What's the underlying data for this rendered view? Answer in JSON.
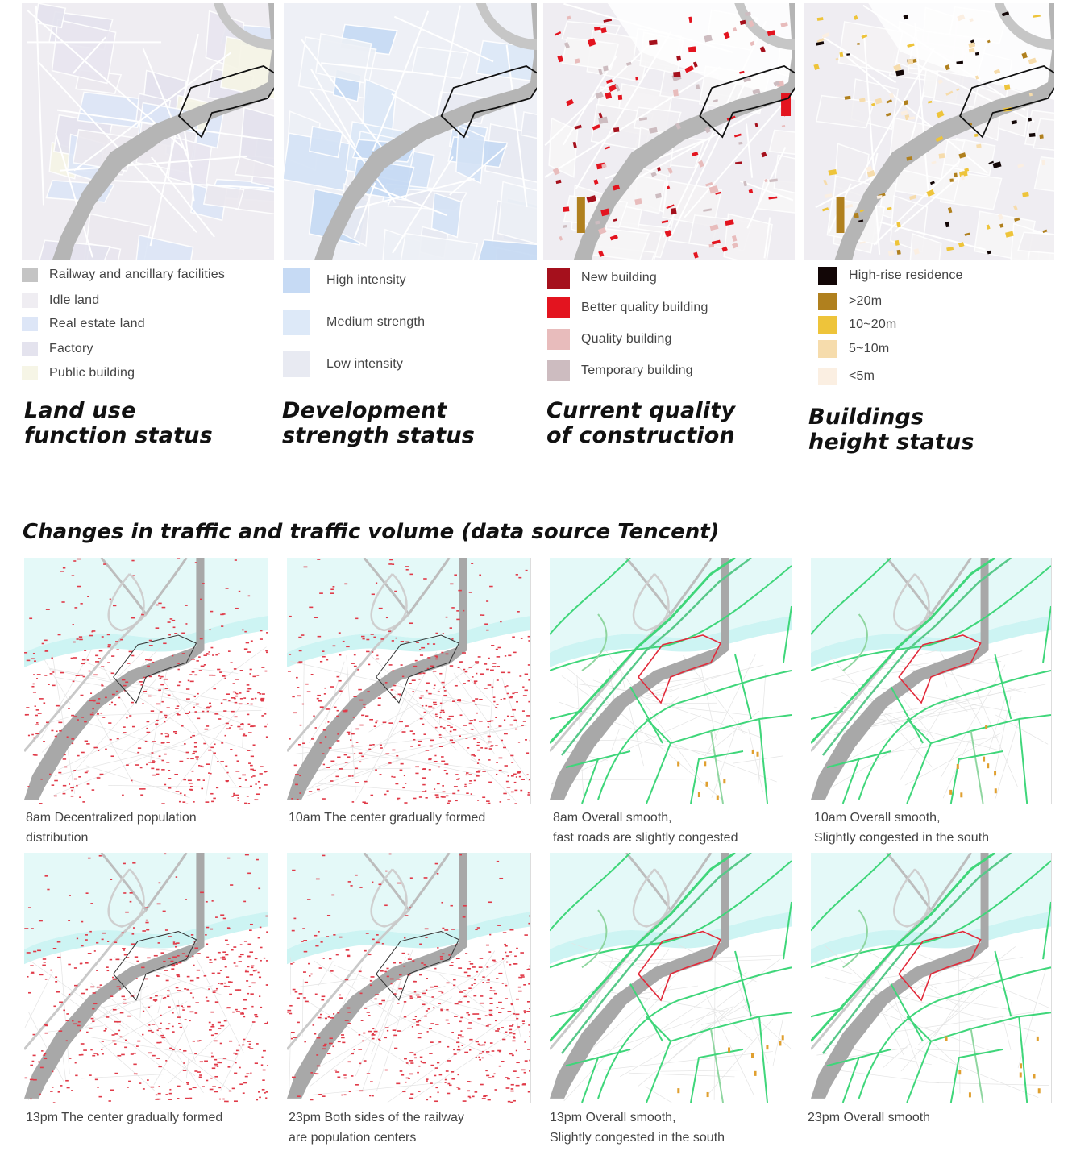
{
  "maps": [
    {
      "title": "Land use\nfunction status",
      "legend": [
        {
          "label": "Railway and ancillary facilities",
          "color": "#c4c4c4"
        },
        {
          "label": "Idle land",
          "color": "#efedf2"
        },
        {
          "label": "Real estate land",
          "color": "#dde6f7"
        },
        {
          "label": "Factory",
          "color": "#e4e3ee"
        },
        {
          "label": "Public building",
          "color": "#f6f5e6"
        }
      ]
    },
    {
      "title": "Development\nstrength status",
      "legend": [
        {
          "label": "High intensity",
          "color": "#c6daf4"
        },
        {
          "label": "Medium strength",
          "color": "#dde9f8"
        },
        {
          "label": "Low intensity",
          "color": "#e8eaf2"
        }
      ]
    },
    {
      "title": "Current quality\nof construction",
      "legend": [
        {
          "label": "New building",
          "color": "#a5101c"
        },
        {
          "label": "Better quality building",
          "color": "#e3141f"
        },
        {
          "label": "Quality building",
          "color": "#e8bcbc"
        },
        {
          "label": "Temporary building",
          "color": "#cdbcc0"
        }
      ]
    },
    {
      "title": "Buildings\nheight status",
      "legend": [
        {
          "label": "High-rise residence",
          "color": "#120606"
        },
        {
          "label": ">20m",
          "color": "#b0801e"
        },
        {
          "label": "10~20m",
          "color": "#eec43a"
        },
        {
          "label": "5~10m",
          "color": "#f6dcac"
        },
        {
          "label": "<5m",
          "color": "#fbefe2"
        }
      ]
    }
  ],
  "traffic": {
    "title": "Changes in traffic and traffic volume (data source Tencent)",
    "panels": [
      {
        "caption": "8am Decentralized population\ndistribution",
        "kind": "population"
      },
      {
        "caption": "10am The center gradually formed",
        "kind": "population"
      },
      {
        "caption": "8am Overall smooth,\nfast roads are slightly congested",
        "kind": "roads"
      },
      {
        "caption": "10am Overall smooth,\nSlightly congested in the south",
        "kind": "roads"
      },
      {
        "caption": "13pm The center gradually formed",
        "kind": "population"
      },
      {
        "caption": "23pm Both sides of the railway\nare population centers",
        "kind": "population"
      },
      {
        "caption": "13pm Overall smooth,\nSlightly congested in the south",
        "kind": "roads"
      },
      {
        "caption": "23pm Overall smooth",
        "kind": "roads"
      }
    ]
  },
  "colors": {
    "water": "#cdf4f3",
    "railway": "#a8a8a8",
    "population_dots": "#e03a48",
    "road_smooth": "#3fd67a",
    "road_congested": "#e22a3a",
    "site_outline": "#222222"
  }
}
